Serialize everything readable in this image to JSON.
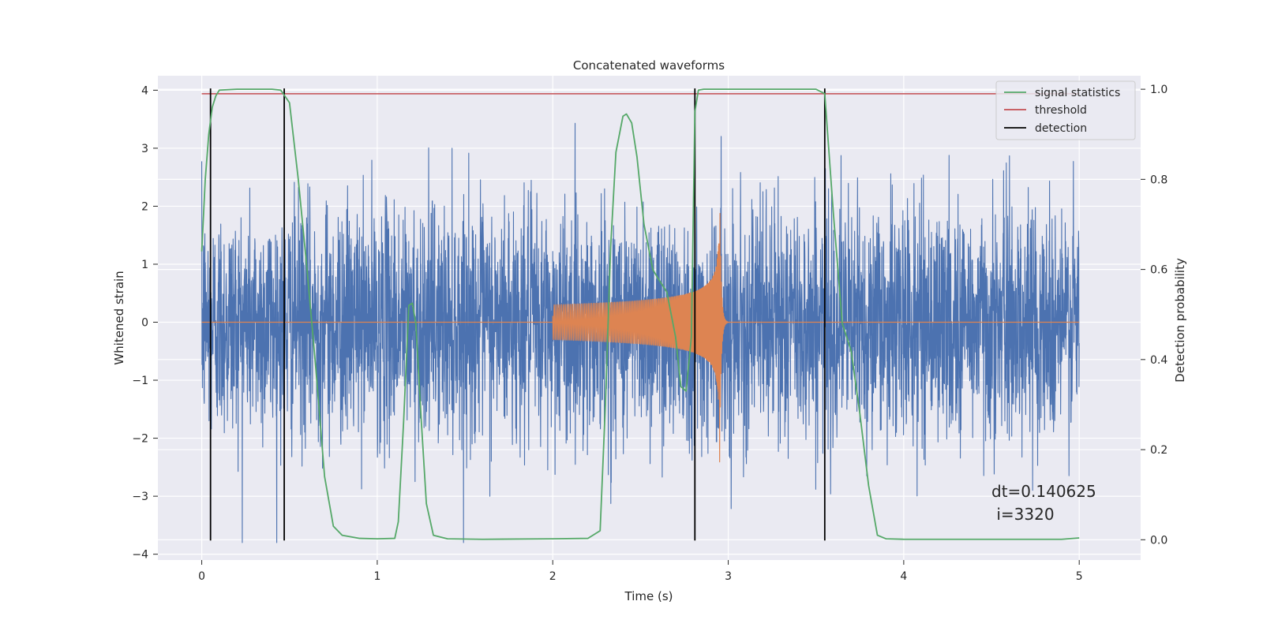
{
  "chart_data": {
    "type": "line",
    "title": "Concatenated waveforms",
    "xlabel": "Time (s)",
    "ylabel": "Whitened strain",
    "y2label": "Detection probability",
    "xlim": [
      -0.25,
      5.35
    ],
    "ylim": [
      -4.1,
      4.25
    ],
    "y2lim": [
      -0.045,
      1.03
    ],
    "xticks": [
      0,
      1,
      2,
      3,
      4,
      5
    ],
    "xtick_labels": [
      "0",
      "1",
      "2",
      "3",
      "4",
      "5"
    ],
    "yticks": [
      -4,
      -3,
      -2,
      -1,
      0,
      1,
      2,
      3,
      4
    ],
    "ytick_labels": [
      "−4",
      "−3",
      "−2",
      "−1",
      "0",
      "1",
      "2",
      "3",
      "4"
    ],
    "y2ticks": [
      0.0,
      0.2,
      0.4,
      0.6,
      0.8,
      1.0
    ],
    "y2tick_labels": [
      "0.0",
      "0.2",
      "0.4",
      "0.6",
      "0.8",
      "1.0"
    ],
    "grid": true,
    "legend_position": "top-right",
    "colors": {
      "plot_background": "#eaeaf2",
      "grid": "#ffffff",
      "strain": "#4c72b0",
      "injected": "#dd8452",
      "signal_statistics": "#55a868",
      "threshold": "#c44e52",
      "detection": "#000000"
    },
    "legend": [
      {
        "label": "signal statistics",
        "color": "#55a868"
      },
      {
        "label": "threshold",
        "color": "#c44e52"
      },
      {
        "label": "detection",
        "color": "#000000"
      }
    ],
    "threshold": 0.99,
    "detections_x": [
      0.05,
      0.47,
      2.81,
      3.55
    ],
    "strain_noise": {
      "x_start": 0.0,
      "x_end": 5.0,
      "approx_range": [
        -3.8,
        3.8
      ]
    },
    "injected_chirp": {
      "x_start": 2.0,
      "x_merger": 2.95,
      "x_end": 3.0,
      "peak_amplitude": 2.1
    },
    "signal_statistics": {
      "x": [
        0.0,
        0.02,
        0.04,
        0.06,
        0.08,
        0.1,
        0.2,
        0.3,
        0.4,
        0.45,
        0.5,
        0.55,
        0.6,
        0.65,
        0.7,
        0.75,
        0.8,
        0.9,
        1.0,
        1.1,
        1.12,
        1.15,
        1.18,
        1.2,
        1.22,
        1.25,
        1.28,
        1.32,
        1.4,
        1.6,
        2.0,
        2.2,
        2.27,
        2.3,
        2.33,
        2.36,
        2.4,
        2.42,
        2.45,
        2.48,
        2.52,
        2.57,
        2.6,
        2.65,
        2.7,
        2.73,
        2.76,
        2.79,
        2.81,
        2.83,
        2.86,
        2.9,
        3.0,
        3.2,
        3.4,
        3.5,
        3.55,
        3.6,
        3.65,
        3.7,
        3.75,
        3.8,
        3.85,
        3.9,
        4.0,
        4.5,
        4.9,
        5.0
      ],
      "y": [
        0.64,
        0.8,
        0.9,
        0.96,
        0.985,
        0.998,
        1.0,
        1.0,
        1.0,
        0.998,
        0.97,
        0.8,
        0.6,
        0.38,
        0.14,
        0.03,
        0.01,
        0.003,
        0.002,
        0.003,
        0.04,
        0.26,
        0.52,
        0.525,
        0.48,
        0.27,
        0.08,
        0.01,
        0.002,
        0.001,
        0.002,
        0.003,
        0.02,
        0.3,
        0.65,
        0.86,
        0.94,
        0.945,
        0.925,
        0.85,
        0.7,
        0.6,
        0.58,
        0.55,
        0.45,
        0.34,
        0.33,
        0.45,
        0.95,
        0.998,
        1.0,
        1.0,
        1.0,
        1.0,
        1.0,
        1.0,
        0.99,
        0.72,
        0.48,
        0.42,
        0.28,
        0.12,
        0.01,
        0.002,
        0.001,
        0.001,
        0.001,
        0.004
      ]
    },
    "annotation": {
      "line1": "dt=0.140625",
      "line2": " i=3320",
      "x": 4.5,
      "y": -2.98
    }
  }
}
